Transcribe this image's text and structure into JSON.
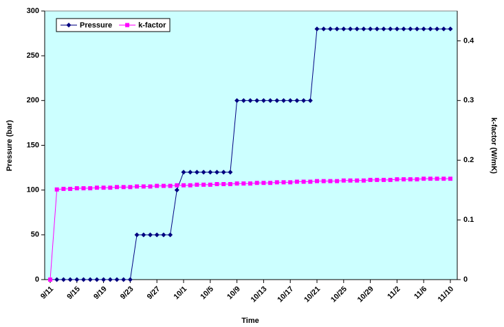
{
  "chart_data": {
    "type": "line",
    "categories": [
      "9/11",
      null,
      null,
      null,
      "9/15",
      null,
      null,
      null,
      "9/19",
      null,
      null,
      null,
      "9/23",
      null,
      null,
      null,
      "9/27",
      null,
      null,
      null,
      "10/1",
      null,
      null,
      null,
      "10/5",
      null,
      null,
      null,
      "10/9",
      null,
      null,
      null,
      "10/13",
      null,
      null,
      null,
      "10/17",
      null,
      null,
      null,
      "10/21",
      null,
      null,
      null,
      "10/25",
      null,
      null,
      null,
      "10/29",
      null,
      null,
      null,
      "11/2",
      null,
      null,
      null,
      "11/6",
      null,
      null,
      null,
      "11/10"
    ],
    "series": [
      {
        "name": "Pressure",
        "color": "#000080",
        "marker": "diamond",
        "values": [
          0,
          0,
          0,
          0,
          0,
          0,
          0,
          0,
          0,
          0,
          0,
          0,
          0,
          50,
          50,
          50,
          50,
          50,
          50,
          100,
          120,
          120,
          120,
          120,
          120,
          120,
          120,
          120,
          200,
          200,
          200,
          200,
          200,
          200,
          200,
          200,
          200,
          200,
          200,
          200,
          280,
          280,
          280,
          280,
          280,
          280,
          280,
          280,
          280,
          280,
          280,
          280,
          280,
          280,
          280,
          280,
          280,
          280,
          280,
          280,
          280
        ]
      },
      {
        "name": "k-factor",
        "color": "#FF00FF",
        "marker": "square",
        "axis": "y2",
        "values": [
          0,
          0.151,
          0.152,
          0.152,
          0.153,
          0.153,
          0.153,
          0.154,
          0.154,
          0.154,
          0.155,
          0.155,
          0.155,
          0.156,
          0.156,
          0.156,
          0.157,
          0.157,
          0.157,
          0.158,
          0.158,
          0.158,
          0.159,
          0.159,
          0.159,
          0.16,
          0.16,
          0.16,
          0.161,
          0.161,
          0.161,
          0.162,
          0.162,
          0.162,
          0.163,
          0.163,
          0.163,
          0.164,
          0.164,
          0.164,
          0.165,
          0.165,
          0.165,
          0.165,
          0.166,
          0.166,
          0.166,
          0.166,
          0.167,
          0.167,
          0.167,
          0.167,
          0.168,
          0.168,
          0.168,
          0.168,
          0.169,
          0.169,
          0.169,
          0.169,
          0.169
        ]
      }
    ],
    "xlabel": "Time",
    "ylabel": "Pressure (bar)",
    "y2label": "k-factor (W/mK)",
    "ylim": [
      0,
      300
    ],
    "yticks": [
      0,
      50,
      100,
      150,
      200,
      250,
      300
    ],
    "y2lim": [
      0,
      0.45
    ],
    "y2ticks": [
      0,
      0.1,
      0.2,
      0.3,
      0.4
    ],
    "legend": "upper left",
    "background": "#CCFFFF"
  }
}
